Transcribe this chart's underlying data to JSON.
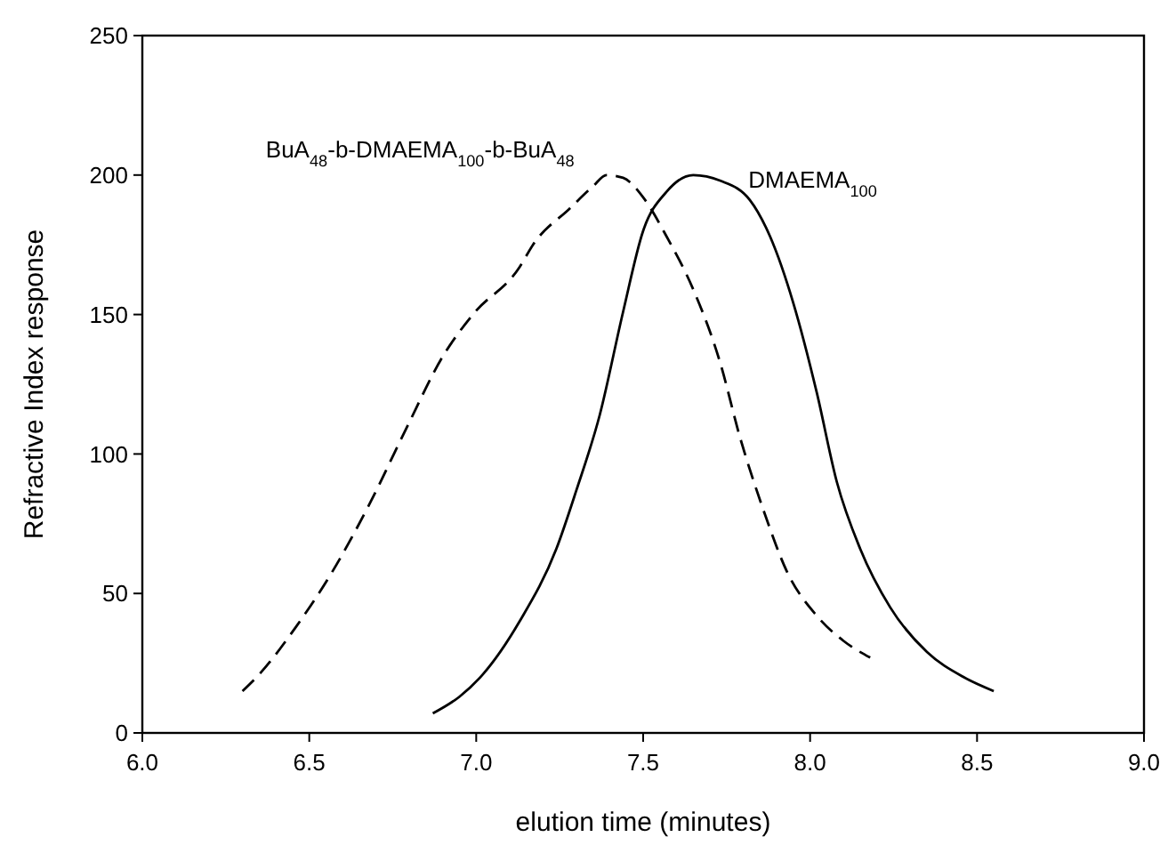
{
  "chart_data": {
    "type": "line",
    "xlabel": "elution time (minutes)",
    "ylabel": "Refractive Index response",
    "xlim": [
      6.0,
      9.0
    ],
    "xticks": [
      {
        "value": 6,
        "label": "6.0"
      },
      6.5,
      {
        "value": 7,
        "label": "7.0"
      },
      7.5,
      {
        "value": 8,
        "label": "8.0"
      },
      8.5,
      {
        "value": 9,
        "label": "9.0"
      }
    ],
    "ylim": [
      0,
      250
    ],
    "yticks": [
      0,
      50,
      100,
      150,
      200,
      250
    ],
    "grid": false,
    "marker": "none",
    "series": [
      {
        "name": "BuA$_{48}$-b-DMAEMA$_{100}$-b-BuA$_{48}$",
        "color": "#000000",
        "line_style": "dashed",
        "x": [
          6.3,
          6.35,
          6.46,
          6.57,
          6.68,
          6.79,
          6.9,
          6.99,
          7.13,
          7.17,
          7.28,
          7.35,
          7.39,
          7.44,
          7.5,
          7.57,
          7.65,
          7.73,
          7.79,
          7.86,
          7.93,
          8.02,
          8.1,
          8.18
        ],
        "values": [
          15,
          21,
          38,
          58,
          82,
          109,
          135,
          150,
          167,
          175,
          188,
          196,
          200,
          199,
          192,
          178,
          159,
          133,
          106,
          80,
          58,
          42,
          33,
          27
        ]
      },
      {
        "name": "DMAEMA$_{100}$",
        "color": "#000000",
        "line_style": "solid",
        "x": [
          6.87,
          6.95,
          7.02,
          7.13,
          7.24,
          7.3,
          7.37,
          7.44,
          7.5,
          7.57,
          7.65,
          7.73,
          7.82,
          7.88,
          7.95,
          8.02,
          8.08,
          8.15,
          8.24,
          8.35,
          8.46,
          8.55
        ],
        "values": [
          7,
          13,
          21,
          40,
          66,
          87,
          114,
          151,
          180,
          194,
          200,
          198,
          191,
          178,
          154,
          122,
          90,
          66,
          45,
          29,
          20,
          15
        ]
      }
    ]
  }
}
